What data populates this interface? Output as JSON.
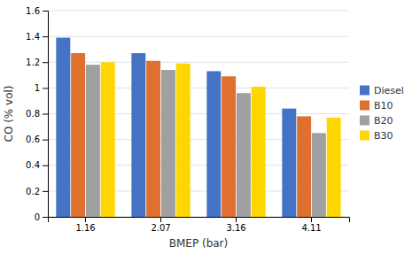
{
  "chart_data": {
    "type": "bar",
    "xlabel": "BMEP (bar)",
    "ylabel": "CO (% vol)",
    "categories": [
      "1.16",
      "2.07",
      "3.16",
      "4.11"
    ],
    "series": [
      {
        "name": "Diesel",
        "color": "#4472C4",
        "values": [
          1.39,
          1.27,
          1.13,
          0.84
        ]
      },
      {
        "name": "B10",
        "color": "#E07030",
        "values": [
          1.27,
          1.21,
          1.09,
          0.78
        ]
      },
      {
        "name": "B20",
        "color": "#A0A0A0",
        "values": [
          1.18,
          1.14,
          0.96,
          0.65
        ]
      },
      {
        "name": "B30",
        "color": "#FFD700",
        "values": [
          1.2,
          1.19,
          1.01,
          0.77
        ]
      }
    ],
    "ylim": [
      0,
      1.6
    ],
    "yticks": [
      0,
      0.2,
      0.4,
      0.6,
      0.8,
      1,
      1.2,
      1.4,
      1.6
    ],
    "grid": true,
    "legend": "right"
  }
}
